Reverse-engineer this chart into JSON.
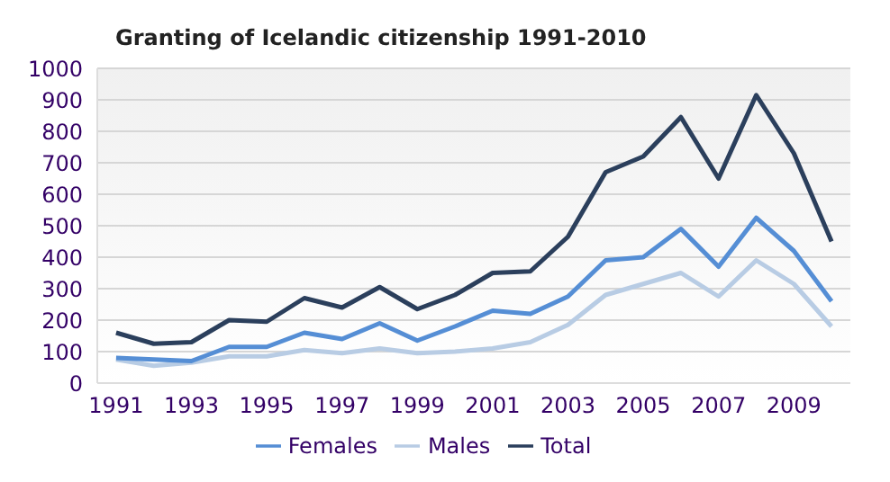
{
  "chart_data": {
    "type": "line",
    "title": "Granting of Icelandic citizenship 1991-2010",
    "x": [
      1991,
      1992,
      1993,
      1994,
      1995,
      1996,
      1997,
      1998,
      1999,
      2000,
      2001,
      2002,
      2003,
      2004,
      2005,
      2006,
      2007,
      2008,
      2009,
      2010
    ],
    "series": [
      {
        "name": "Total",
        "color": "#2b3f5c",
        "values": [
          160,
          125,
          130,
          200,
          195,
          270,
          240,
          305,
          235,
          280,
          350,
          355,
          465,
          670,
          720,
          845,
          650,
          915,
          730,
          450
        ]
      },
      {
        "name": "Males",
        "color": "#b8cce4",
        "values": [
          75,
          55,
          65,
          85,
          85,
          105,
          95,
          110,
          95,
          100,
          110,
          130,
          185,
          280,
          315,
          350,
          275,
          390,
          315,
          180
        ]
      },
      {
        "name": "Females",
        "color": "#558ed5",
        "values": [
          80,
          75,
          70,
          115,
          115,
          160,
          140,
          190,
          135,
          180,
          230,
          220,
          275,
          390,
          400,
          490,
          370,
          525,
          420,
          260
        ]
      }
    ],
    "xlim": [
      1990.5,
      2010.5
    ],
    "xticks": [
      1991,
      1993,
      1995,
      1997,
      1999,
      2001,
      2003,
      2005,
      2007,
      2009
    ],
    "ylim": [
      0,
      1000
    ],
    "yticks": [
      0,
      100,
      200,
      300,
      400,
      500,
      600,
      700,
      800,
      900,
      1000
    ],
    "grid": "y",
    "legend": "bottom",
    "marker": "none",
    "line_style": "solid"
  }
}
